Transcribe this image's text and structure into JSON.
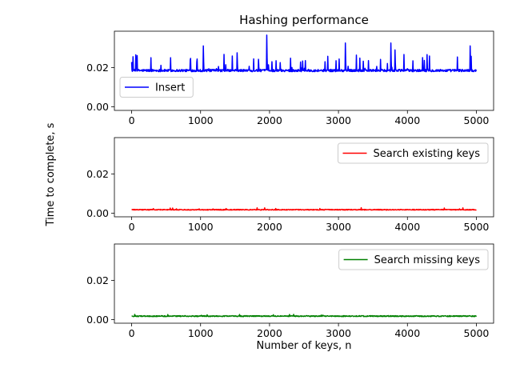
{
  "chart_data": {
    "type": "line",
    "title": "Hashing performance",
    "ylabel": "Time to complete, s",
    "xlabel": "Number of keys, n",
    "xlim": [
      -250,
      5250
    ],
    "ylim": [
      -0.0018,
      0.0385
    ],
    "x_ticks": [
      0,
      1000,
      2000,
      3000,
      4000,
      5000
    ],
    "y_ticks": [
      0.0,
      0.02
    ],
    "x_tick_labels": [
      "0",
      "1000",
      "2000",
      "3000",
      "4000",
      "5000"
    ],
    "y_tick_labels": [
      "0.00",
      "0.02"
    ],
    "grid": false,
    "panels": [
      {
        "series_name": "Insert",
        "color": "#0000ff",
        "legend_position": "center-left",
        "x_range": [
          0,
          5000
        ],
        "baseline": 0.0185,
        "noise": 0.0012,
        "spike_rate": 0.06,
        "spike_max": 0.009,
        "peaks": [
          {
            "x": 60,
            "y": 0.0265
          },
          {
            "x": 1040,
            "y": 0.031
          },
          {
            "x": 1530,
            "y": 0.0275
          },
          {
            "x": 1960,
            "y": 0.0365
          },
          {
            "x": 3100,
            "y": 0.0325
          },
          {
            "x": 3760,
            "y": 0.0325
          },
          {
            "x": 3820,
            "y": 0.029
          },
          {
            "x": 4910,
            "y": 0.031
          }
        ]
      },
      {
        "series_name": "Search existing keys",
        "color": "#ff0000",
        "legend_position": "upper-right",
        "x_range": [
          0,
          5000
        ],
        "baseline": 0.0018,
        "noise": 0.0004,
        "spike_rate": 0.02,
        "spike_max": 0.001,
        "peaks": []
      },
      {
        "series_name": "Search missing keys",
        "color": "#008000",
        "legend_position": "upper-right",
        "x_range": [
          0,
          5000
        ],
        "baseline": 0.0018,
        "noise": 0.0005,
        "spike_rate": 0.02,
        "spike_max": 0.001,
        "peaks": []
      }
    ]
  }
}
